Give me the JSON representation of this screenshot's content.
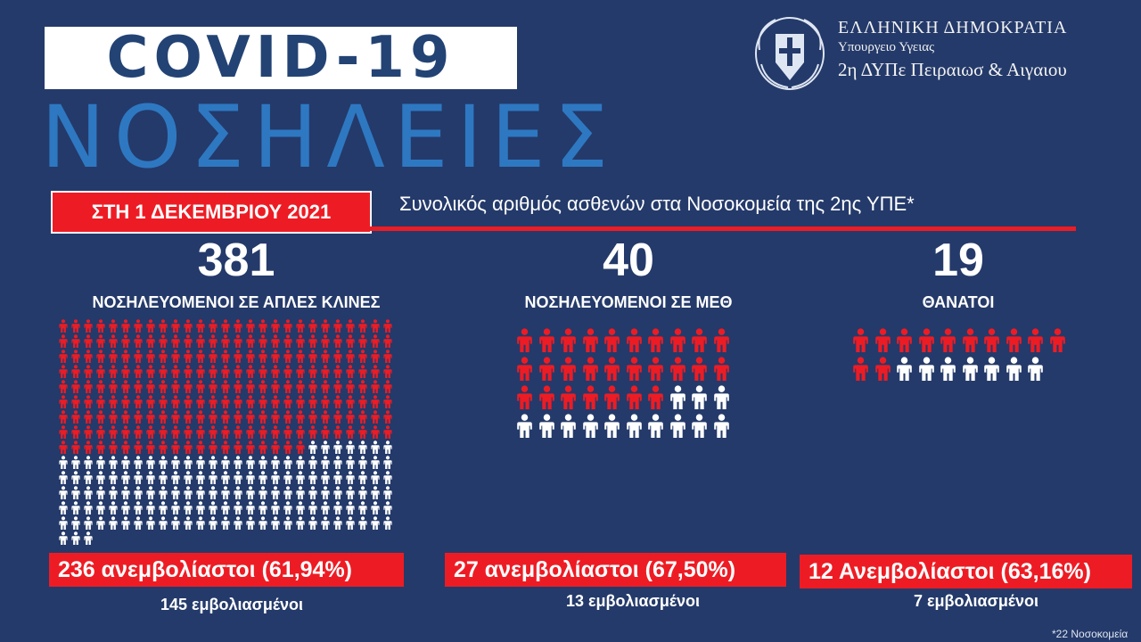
{
  "header": {
    "title": "COVID-19",
    "subtitle": "ΝΟΣΗΛΕΙΕΣ"
  },
  "ministry": {
    "line1": "ΕΛΛΗΝΙΚΗ ΔΗΜΟΚΡΑΤΙΑ",
    "line2": "Υπουργειο Υγειας",
    "line3": "2η ΔΥΠε Πειραιωσ & Αιγαιου"
  },
  "banner": {
    "date": "ΣΤΗ 1 ΔΕΚΕΜΒΡΙΟΥ 2021",
    "description": "Συνολικός αριθμός ασθενών στα Νοσοκομεία της 2ης ΥΠΕ*"
  },
  "stats": [
    {
      "number": "381",
      "label": "ΝΟΣΗΛΕΥΟΜΕΝΟΙ ΣΕ ΑΠΛΕΣ ΚΛΙΝΕΣ",
      "unvaccinated": "236 ανεμβολίαστοι (61,94%)",
      "vaccinated": "145 εμβολιασμένοι",
      "unvaccinated_count": 236,
      "total": 381
    },
    {
      "number": "40",
      "label": "ΝΟΣΗΛΕΥΟΜΕΝΟΙ ΣΕ ΜΕΘ",
      "unvaccinated": "27 ανεμβολίαστοι (67,50%)",
      "vaccinated": "13 εμβολιασμένοι",
      "unvaccinated_count": 27,
      "total": 40
    },
    {
      "number": "19",
      "label": "ΘΑΝΑΤΟΙ",
      "unvaccinated": "12 Ανεμβολίαστοι (63,16%)",
      "vaccinated": "7 εμβολιασμένοι",
      "unvaccinated_count": 12,
      "total": 19
    }
  ],
  "footnote": "*22 Νοσοκομεία",
  "colors": {
    "background": "#243a6a",
    "unvaccinated": "#ed1c24",
    "vaccinated": "#ffffff",
    "title": "#234374",
    "subtitle": "#2e78c2"
  },
  "icons": {
    "person": "person-icon",
    "seal": "greek-coat-of-arms-icon"
  }
}
